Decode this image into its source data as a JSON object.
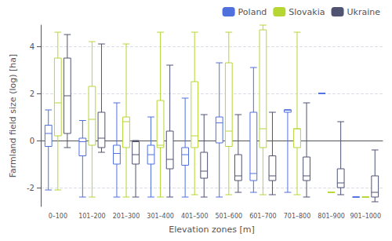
{
  "chart_data": {
    "type": "boxplot",
    "xlabel": "Elevation zones [m]",
    "ylabel": "Farmland field size (log) [ha]",
    "categories": [
      "0–100",
      "101–200",
      "201–300",
      "301–400",
      "401–500",
      "501–600",
      "601–700",
      "701–800",
      "801–900",
      "901–1000"
    ],
    "series": [
      {
        "name": "Poland",
        "values": [
          {
            "low": -2.1,
            "q1": -0.25,
            "median": 0.3,
            "q3": 0.65,
            "high": 1.3
          },
          {
            "low": -2.4,
            "q1": -0.65,
            "median": -0.05,
            "q3": 0.1,
            "high": 0.85
          },
          {
            "low": -2.4,
            "q1": -1.0,
            "median": -0.55,
            "q3": -0.2,
            "high": 1.6
          },
          {
            "low": -2.4,
            "q1": -1.0,
            "median": -0.6,
            "q3": -0.2,
            "high": 1.0
          },
          {
            "low": -2.4,
            "q1": -1.05,
            "median": -0.6,
            "q3": -0.3,
            "high": 1.8
          },
          {
            "low": -2.4,
            "q1": -0.1,
            "median": 0.75,
            "q3": 1.0,
            "high": 3.3
          },
          {
            "low": -2.2,
            "q1": -1.7,
            "median": -1.4,
            "q3": 1.2,
            "high": 3.1
          },
          {
            "low": -2.2,
            "q1": 1.2,
            "median": 1.3,
            "q3": 1.3,
            "high": 1.3
          },
          {
            "low": 2.0,
            "q1": 2.0,
            "median": 2.0,
            "q3": 2.0,
            "high": 2.0
          },
          {
            "low": -2.4,
            "q1": -2.4,
            "median": -2.4,
            "q3": -2.4,
            "high": -2.4
          }
        ]
      },
      {
        "name": "Slovakia",
        "values": [
          {
            "low": -2.1,
            "q1": 0.2,
            "median": 1.6,
            "q3": 3.5,
            "high": 4.6
          },
          {
            "low": -2.4,
            "q1": -0.2,
            "median": 0.9,
            "q3": 2.3,
            "high": 4.2
          },
          {
            "low": -2.4,
            "q1": -0.3,
            "median": 0.8,
            "q3": 1.0,
            "high": 4.1
          },
          {
            "low": -2.4,
            "q1": -0.3,
            "median": -0.2,
            "q3": 1.7,
            "high": 4.6
          },
          {
            "low": -2.3,
            "q1": -0.3,
            "median": 0.2,
            "q3": 2.5,
            "high": 4.6
          },
          {
            "low": -2.3,
            "q1": -0.25,
            "median": 0.4,
            "q3": 3.3,
            "high": 4.6
          },
          {
            "low": -2.3,
            "q1": -0.3,
            "median": 0.5,
            "q3": 4.7,
            "high": 4.9
          },
          {
            "low": -2.3,
            "q1": -0.3,
            "median": 0.5,
            "q3": 0.5,
            "high": 4.6
          },
          {
            "low": -2.2,
            "q1": -2.2,
            "median": -2.2,
            "q3": -2.2,
            "high": -2.2
          },
          {
            "low": -2.4,
            "q1": -2.4,
            "median": -2.4,
            "q3": -2.4,
            "high": -2.4
          }
        ]
      },
      {
        "name": "Ukraine",
        "values": [
          {
            "low": -0.3,
            "q1": 0.3,
            "median": 1.9,
            "q3": 3.5,
            "high": 4.5
          },
          {
            "low": -0.5,
            "q1": -0.3,
            "median": 0.1,
            "q3": 1.2,
            "high": 4.1
          },
          {
            "low": -2.4,
            "q1": -1.0,
            "median": -0.6,
            "q3": -0.05,
            "high": 0.0
          },
          {
            "low": -2.4,
            "q1": -1.2,
            "median": -0.8,
            "q3": 0.4,
            "high": 3.2
          },
          {
            "low": -2.4,
            "q1": -1.6,
            "median": -1.3,
            "q3": -0.5,
            "high": 1.1
          },
          {
            "low": -2.2,
            "q1": -1.7,
            "median": -1.5,
            "q3": -0.6,
            "high": 1.1
          },
          {
            "low": -2.3,
            "q1": -1.7,
            "median": -1.5,
            "q3": -0.65,
            "high": 1.2
          },
          {
            "low": -2.4,
            "q1": -1.7,
            "median": -1.5,
            "q3": -0.7,
            "high": 1.6
          },
          {
            "low": -2.3,
            "q1": -2.0,
            "median": -1.8,
            "q3": -1.2,
            "high": 0.8
          },
          {
            "low": -2.6,
            "q1": -2.4,
            "median": -2.2,
            "q3": -1.5,
            "high": -0.4
          }
        ]
      }
    ],
    "ylim": [
      -2.8,
      4.9
    ],
    "yticks": [
      -2,
      0,
      2,
      4
    ],
    "grid": true,
    "legend": "upper right"
  }
}
